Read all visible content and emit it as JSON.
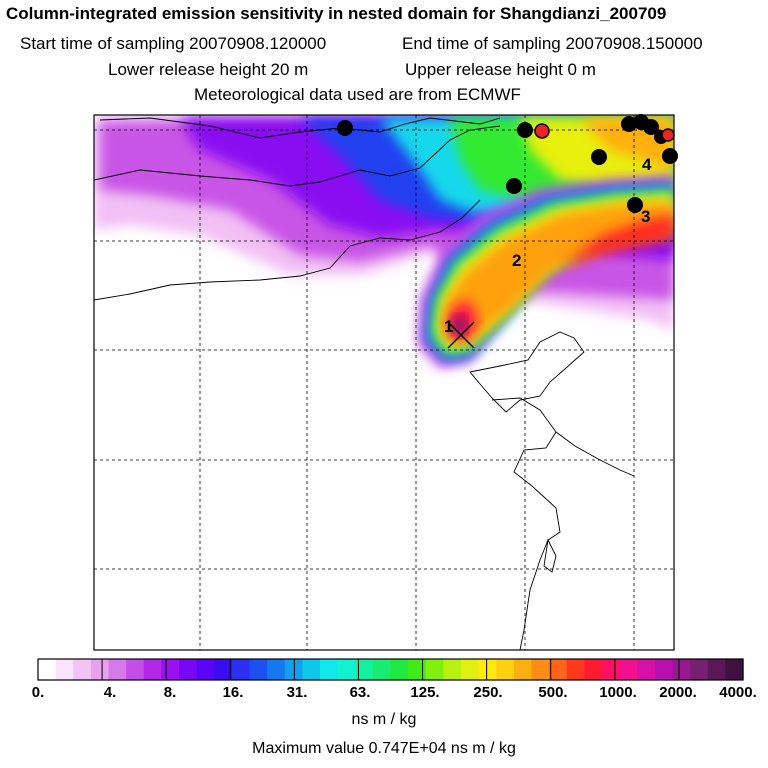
{
  "header": {
    "title": "Column-integrated emission sensitivity in nested domain for Shangdianzi_200709",
    "start_label": "Start time of sampling 20070908.120000",
    "end_label": "End time of sampling 20070908.150000",
    "lower_label": "Lower release height   20 m",
    "upper_label": "Upper release height    0 m",
    "met_label": "Meteorological data used are from ECMWF"
  },
  "map": {
    "type": "emission-sensitivity-map",
    "gridlines": true,
    "receptor_marker": "x-mark-icon",
    "plume_labels": [
      "1",
      "2",
      "3",
      "4"
    ],
    "sample_point_color_black": "#000000",
    "sample_point_color_red": "#e8251e"
  },
  "colorbar": {
    "tick_labels": [
      "0.",
      "4.",
      "8.",
      "16.",
      "31.",
      "63.",
      "125.",
      "250.",
      "500.",
      "1000.",
      "2000.",
      "4000."
    ],
    "colors": [
      "#ffffff",
      "#fbe3fb",
      "#f3c3f5",
      "#e8a0f0",
      "#d77ae9",
      "#c44fe4",
      "#b129e6",
      "#9a10f2",
      "#7a07f4",
      "#5a04f3",
      "#3a0cf0",
      "#2a2ff0",
      "#1c50f0",
      "#1478ee",
      "#12a0ec",
      "#10c6ea",
      "#10e8ec",
      "#12f2d0",
      "#14f0a0",
      "#18ec70",
      "#20e840",
      "#40ec18",
      "#80f010",
      "#b8f010",
      "#e0f010",
      "#ffea10",
      "#ffd010",
      "#ffb010",
      "#ff8c14",
      "#ff6418",
      "#ff3a1c",
      "#ff1c30",
      "#ff1060",
      "#f01090",
      "#d810a8",
      "#b810b0",
      "#981890",
      "#782070",
      "#5a1858",
      "#401040"
    ],
    "units": "ns m / kg",
    "max_label": "Maximum value  0.747E+04 ns m / kg"
  }
}
